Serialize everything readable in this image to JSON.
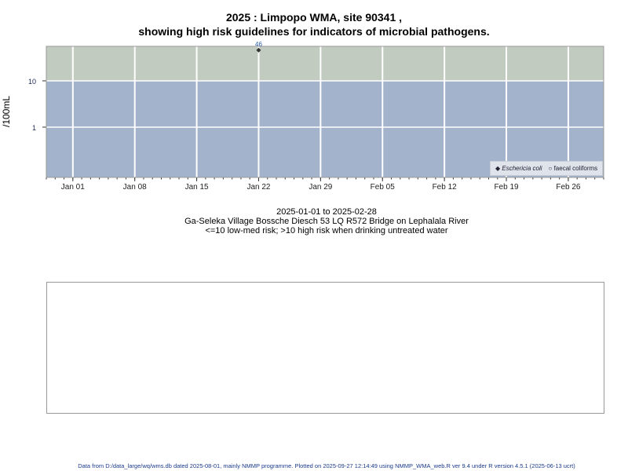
{
  "title_line1": "2025 : Limpopo WMA, site 90341 ,",
  "title_line2": "showing high risk guidelines for indicators of microbial pathogens.",
  "caption": {
    "date_range": "2025-01-01 to 2025-02-28",
    "site": "Ga-Seleka Village Bossche Diesch 53 LQ R572 Bridge on Lephalala River",
    "guideline": "<=10 low-med risk; >10 high risk when drinking untreated water"
  },
  "footer": "Data from D:/data_large/wq/wms.db dated 2025-08-01, mainly NMMP programme. Plotted on 2025-09-27 12:14:49 using NMMP_WMA_web.R ver 9.4 under R version 4.5.1 (2025-06-13 ucrt)",
  "chart_data": {
    "type": "scatter",
    "ylabel": "/100mL",
    "y_scale": "log",
    "ylim": [
      0.082,
      55.7
    ],
    "xlim": [
      "2024-12-29",
      "2025-03-02"
    ],
    "x_ticks": [
      {
        "date": "2025-01-01",
        "label": "Jan 01"
      },
      {
        "date": "2025-01-08",
        "label": "Jan 08"
      },
      {
        "date": "2025-01-15",
        "label": "Jan 15"
      },
      {
        "date": "2025-01-22",
        "label": "Jan 22"
      },
      {
        "date": "2025-01-29",
        "label": "Jan 29"
      },
      {
        "date": "2025-02-05",
        "label": "Feb 05"
      },
      {
        "date": "2025-02-12",
        "label": "Feb 12"
      },
      {
        "date": "2025-02-19",
        "label": "Feb 19"
      },
      {
        "date": "2025-02-26",
        "label": "Feb 26"
      }
    ],
    "y_ticks": [
      {
        "value": 10,
        "label": "10"
      },
      {
        "value": 1,
        "label": "1"
      }
    ],
    "grid": true,
    "bands": [
      {
        "from": 10,
        "to": 55.7,
        "color": "#c2cbc0",
        "meaning": "high risk"
      },
      {
        "from": 0.082,
        "to": 10,
        "color": "#a2b3cb",
        "meaning": "low-med risk"
      }
    ],
    "series": [
      {
        "name": "Eschericia coli",
        "marker": "filled-diamond",
        "color": "#333333",
        "points": [
          {
            "date": "2025-01-22",
            "value": 46,
            "label": "46"
          }
        ]
      },
      {
        "name": "faecal coliforms",
        "marker": "open-circle",
        "color": "#333333",
        "points": []
      }
    ],
    "legend_position": "bottom-right",
    "label_color": "#2a5ca8"
  }
}
